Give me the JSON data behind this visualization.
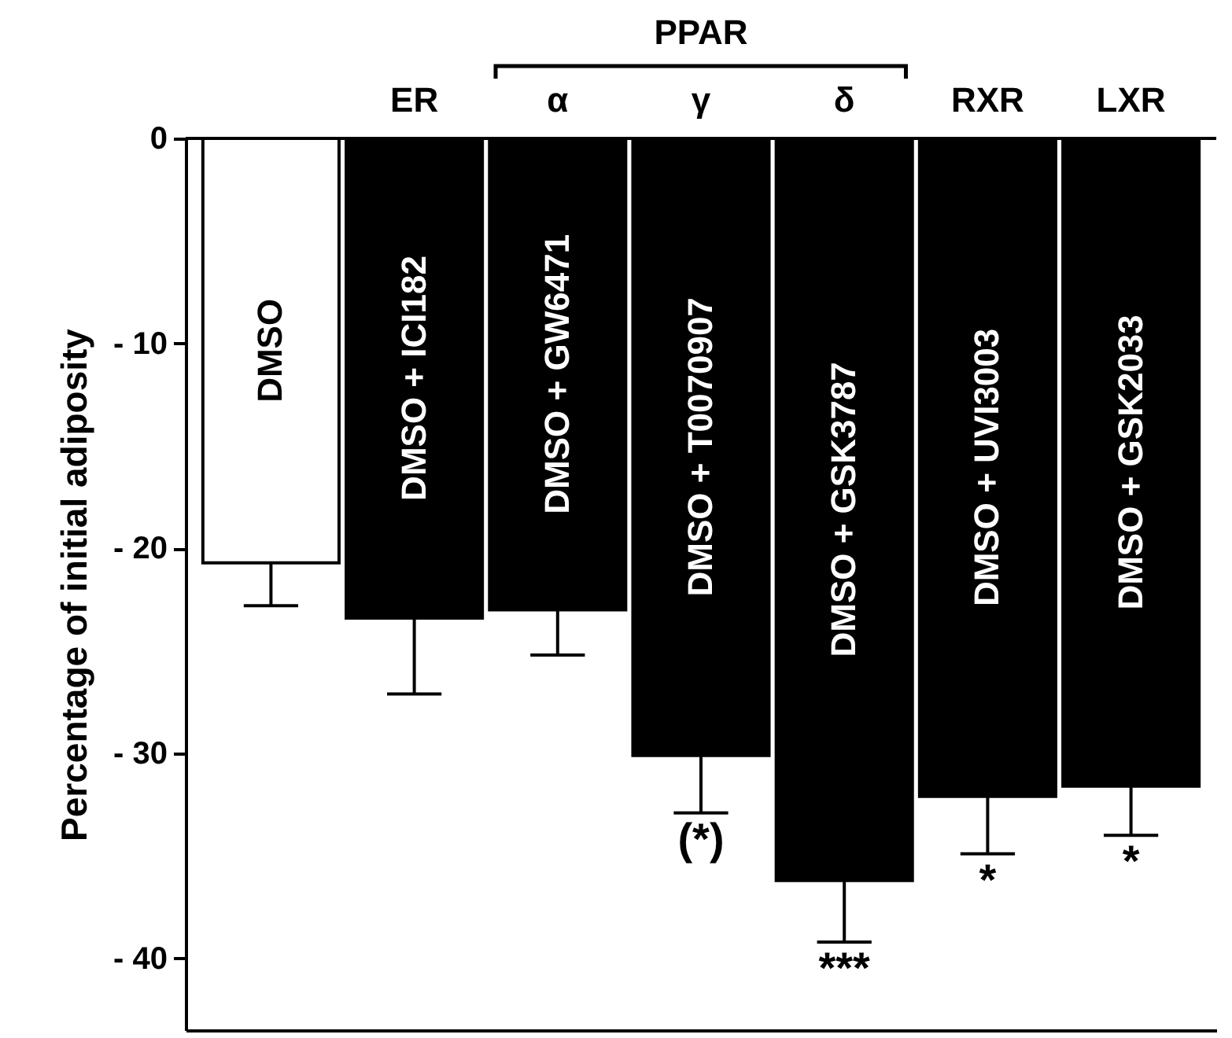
{
  "chart_data": {
    "type": "bar",
    "ylabel": "Percentage of initial adiposity",
    "categories": [
      "DMSO",
      "DMSO + ICI182",
      "DMSO + GW6471",
      "DMSO + T0070907",
      "DMSO + GSK3787",
      "DMSO + UVI3003",
      "DMSO + GSK2033"
    ],
    "values": [
      -20.7,
      -23.4,
      -23.0,
      -30.1,
      -36.2,
      -32.1,
      -31.6
    ],
    "errors": [
      [
        -22.8,
        -20.7
      ],
      [
        -27.1,
        -23.4
      ],
      [
        -25.2,
        -23.0
      ],
      [
        -32.9,
        -30.1
      ],
      [
        -39.2,
        -36.2
      ],
      [
        -34.9,
        -32.1
      ],
      [
        -34.0,
        -31.6
      ]
    ],
    "colors": [
      "#ffffff",
      "#000000",
      "#000000",
      "#000000",
      "#000000",
      "#000000",
      "#000000"
    ],
    "ylim": [
      -43.5,
      0
    ],
    "yticks": [
      {
        "value": -40,
        "label": "- 40"
      },
      {
        "value": -30,
        "label": "- 30"
      },
      {
        "value": -20,
        "label": "- 20"
      },
      {
        "value": -10,
        "label": "- 10"
      },
      0
    ],
    "tick_labels": "y",
    "annotations": [
      "ER",
      "α",
      "γ",
      "δ",
      "RXR",
      "LXR",
      "PPAR",
      {
        "text": "(*)",
        "x": "DMSO + T0070907",
        "y": -32.9
      },
      {
        "text": "***",
        "x": "DMSO + GSK3787",
        "y": -39.2
      },
      {
        "text": "*",
        "x": "DMSO + UVI3003",
        "y": -34.9
      },
      {
        "text": "*",
        "x": "DMSO + GSK2033",
        "y": -34.0
      }
    ]
  }
}
